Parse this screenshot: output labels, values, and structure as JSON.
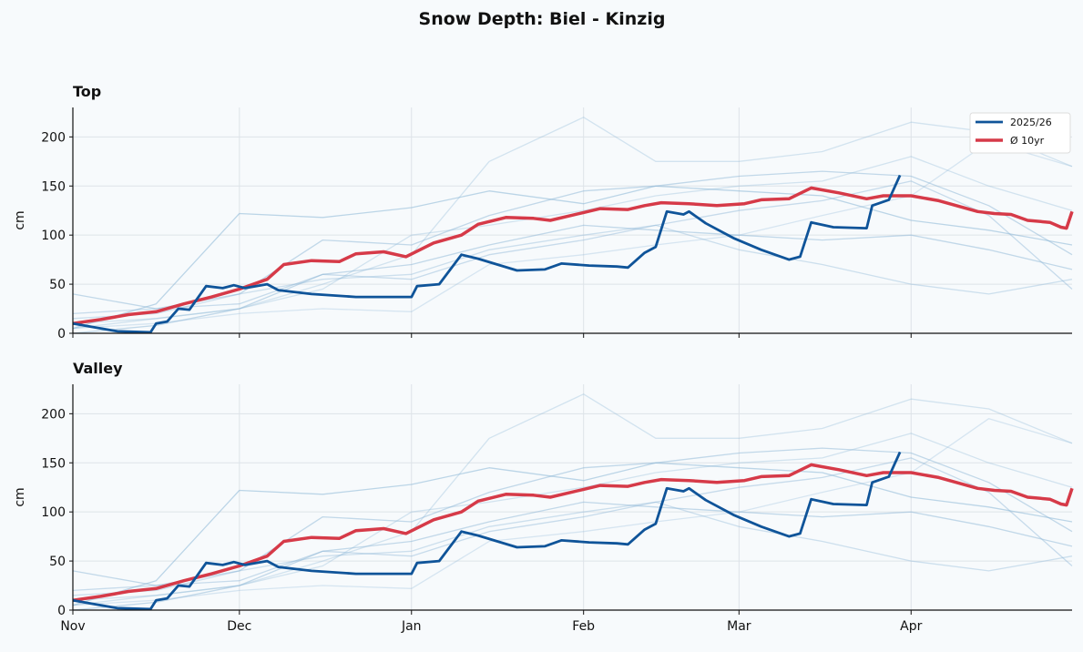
{
  "chart_data": {
    "type": "line",
    "title": "Snow Depth: Biel - Kinzig",
    "ylabel": "cm",
    "xlim": [
      "2025-11-01",
      "2026-04-30"
    ],
    "ylim": [
      0,
      230
    ],
    "yticks": [
      0,
      50,
      100,
      150,
      200
    ],
    "xticks": [
      {
        "date": "2025-11-01",
        "label": "Nov"
      },
      {
        "date": "2025-12-01",
        "label": "Dec"
      },
      {
        "date": "2026-01-01",
        "label": "Jan"
      },
      {
        "date": "2026-02-01",
        "label": "Feb"
      },
      {
        "date": "2026-03-01",
        "label": "Mar"
      },
      {
        "date": "2026-04-01",
        "label": "Apr"
      }
    ],
    "grid": true,
    "legend_placement": "top-right",
    "colors": {
      "current": "#0f5499",
      "average": "#d63a48",
      "history": "#8bb6d6"
    },
    "panels": [
      {
        "title": "Top",
        "show_legend": true
      },
      {
        "title": "Valley",
        "show_legend": false
      }
    ],
    "current": {
      "name": "2025/26",
      "points": [
        [
          "2025-11-01",
          10
        ],
        [
          "2025-11-04",
          7
        ],
        [
          "2025-11-09",
          2
        ],
        [
          "2025-11-15",
          1
        ],
        [
          "2025-11-16",
          10
        ],
        [
          "2025-11-18",
          12
        ],
        [
          "2025-11-20",
          25
        ],
        [
          "2025-11-22",
          24
        ],
        [
          "2025-11-25",
          48
        ],
        [
          "2025-11-28",
          46
        ],
        [
          "2025-11-30",
          49
        ],
        [
          "2025-12-02",
          46
        ],
        [
          "2025-12-06",
          50
        ],
        [
          "2025-12-08",
          44
        ],
        [
          "2025-12-14",
          40
        ],
        [
          "2025-12-22",
          37
        ],
        [
          "2026-01-01",
          37
        ],
        [
          "2026-01-02",
          48
        ],
        [
          "2026-01-06",
          50
        ],
        [
          "2026-01-10",
          80
        ],
        [
          "2026-01-13",
          76
        ],
        [
          "2026-01-20",
          64
        ],
        [
          "2026-01-25",
          65
        ],
        [
          "2026-01-28",
          71
        ],
        [
          "2026-02-02",
          69
        ],
        [
          "2026-02-07",
          68
        ],
        [
          "2026-02-09",
          67
        ],
        [
          "2026-02-12",
          82
        ],
        [
          "2026-02-14",
          88
        ],
        [
          "2026-02-16",
          124
        ],
        [
          "2026-02-19",
          121
        ],
        [
          "2026-02-20",
          124
        ],
        [
          "2026-02-23",
          112
        ],
        [
          "2026-02-28",
          97
        ],
        [
          "2026-03-05",
          85
        ],
        [
          "2026-03-10",
          75
        ],
        [
          "2026-03-12",
          78
        ],
        [
          "2026-03-14",
          113
        ],
        [
          "2026-03-18",
          108
        ],
        [
          "2026-03-24",
          107
        ],
        [
          "2026-03-25",
          130
        ],
        [
          "2026-03-28",
          136
        ],
        [
          "2026-03-30",
          161
        ]
      ]
    },
    "average": {
      "name": "Ø 10yr",
      "points": [
        [
          "2025-11-01",
          10
        ],
        [
          "2025-11-06",
          14
        ],
        [
          "2025-11-11",
          19
        ],
        [
          "2025-11-16",
          22
        ],
        [
          "2025-11-21",
          30
        ],
        [
          "2025-11-26",
          37
        ],
        [
          "2025-12-01",
          45
        ],
        [
          "2025-12-06",
          55
        ],
        [
          "2025-12-09",
          70
        ],
        [
          "2025-12-14",
          74
        ],
        [
          "2025-12-19",
          73
        ],
        [
          "2025-12-22",
          81
        ],
        [
          "2025-12-27",
          83
        ],
        [
          "2025-12-31",
          78
        ],
        [
          "2026-01-05",
          92
        ],
        [
          "2026-01-10",
          100
        ],
        [
          "2026-01-13",
          111
        ],
        [
          "2026-01-18",
          118
        ],
        [
          "2026-01-23",
          117
        ],
        [
          "2026-01-26",
          115
        ],
        [
          "2026-02-01",
          123
        ],
        [
          "2026-02-04",
          127
        ],
        [
          "2026-02-09",
          126
        ],
        [
          "2026-02-12",
          130
        ],
        [
          "2026-02-15",
          133
        ],
        [
          "2026-02-20",
          132
        ],
        [
          "2026-02-25",
          130
        ],
        [
          "2026-03-02",
          132
        ],
        [
          "2026-03-05",
          136
        ],
        [
          "2026-03-10",
          137
        ],
        [
          "2026-03-14",
          148
        ],
        [
          "2026-03-19",
          143
        ],
        [
          "2026-03-24",
          137
        ],
        [
          "2026-03-27",
          140
        ],
        [
          "2026-04-01",
          140
        ],
        [
          "2026-04-06",
          135
        ],
        [
          "2026-04-13",
          124
        ],
        [
          "2026-04-16",
          122
        ],
        [
          "2026-04-19",
          121
        ],
        [
          "2026-04-22",
          115
        ],
        [
          "2026-04-26",
          113
        ],
        [
          "2026-04-28",
          108
        ],
        [
          "2026-04-29",
          107
        ],
        [
          "2026-04-30",
          124
        ]
      ]
    },
    "history": {
      "x": [
        "2025-11-01",
        "2025-11-16",
        "2025-12-01",
        "2025-12-16",
        "2026-01-01",
        "2026-01-15",
        "2026-02-01",
        "2026-02-14",
        "2026-03-01",
        "2026-03-16",
        "2026-04-01",
        "2026-04-15",
        "2026-04-30"
      ],
      "series": [
        [
          5,
          30,
          122,
          118,
          128,
          145,
          132,
          150,
          145,
          140,
          115,
          105,
          90
        ],
        [
          10,
          15,
          25,
          50,
          80,
          175,
          220,
          175,
          175,
          185,
          215,
          205,
          170
        ],
        [
          40,
          25,
          40,
          95,
          90,
          120,
          145,
          150,
          160,
          165,
          160,
          130,
          80
        ],
        [
          20,
          25,
          30,
          60,
          55,
          80,
          95,
          110,
          125,
          135,
          155,
          120,
          45
        ],
        [
          5,
          10,
          20,
          25,
          22,
          70,
          80,
          90,
          100,
          120,
          140,
          195,
          170
        ],
        [
          0,
          8,
          25,
          60,
          70,
          90,
          110,
          105,
          100,
          95,
          100,
          85,
          65
        ],
        [
          15,
          20,
          40,
          55,
          60,
          85,
          100,
          110,
          85,
          70,
          50,
          40,
          55
        ],
        [
          5,
          15,
          25,
          45,
          100,
          110,
          125,
          140,
          150,
          155,
          180,
          150,
          125
        ]
      ]
    }
  }
}
